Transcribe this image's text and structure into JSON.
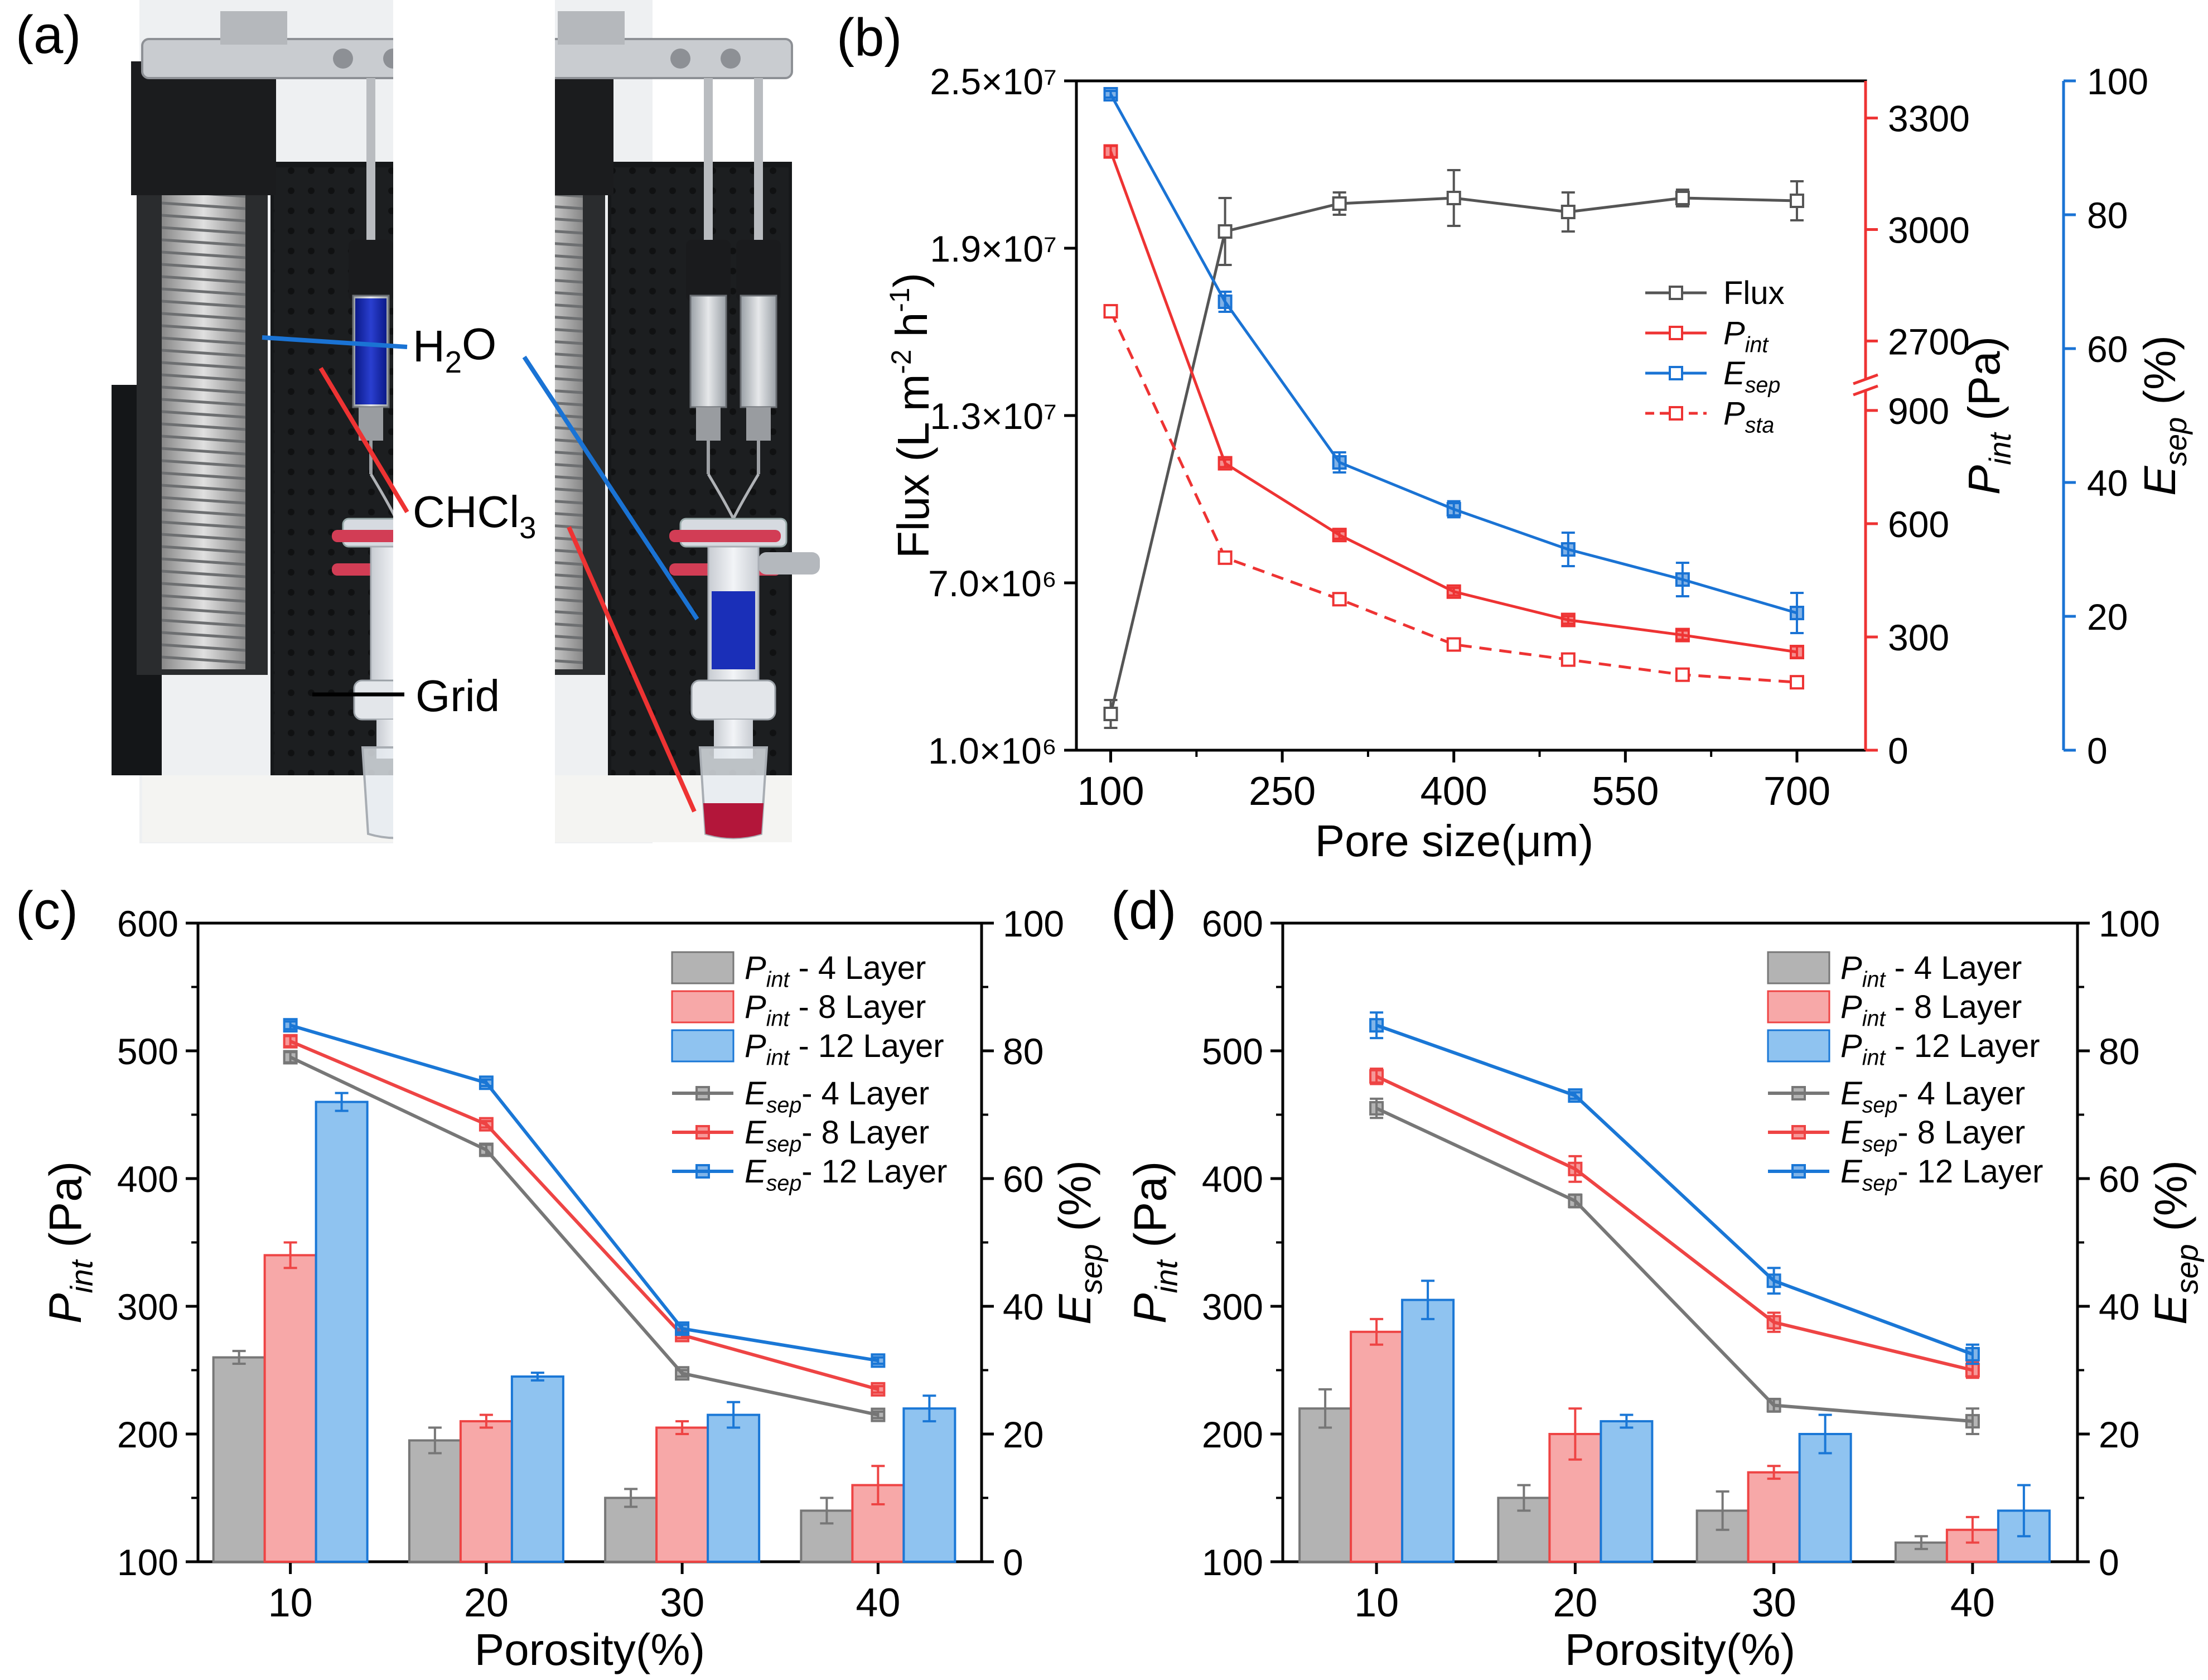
{
  "panels": {
    "a": {
      "label": "(a)",
      "annotations": [
        {
          "base": "H",
          "sub": "2",
          "tail": "O"
        },
        {
          "base": "CHCl",
          "sub": "3",
          "tail": ""
        },
        {
          "base": "Grid",
          "sub": "",
          "tail": ""
        }
      ]
    },
    "b": {
      "label": "(b)"
    },
    "c": {
      "label": "(c)"
    },
    "d": {
      "label": "(d)"
    }
  },
  "colors": {
    "flux": "#555555",
    "pint": "#ee3333",
    "esep": "#1a73d4",
    "l4": "#777777",
    "l8": "#ee4444",
    "l12": "#1a77d6"
  },
  "chart_data": [
    {
      "id": "b",
      "type": "line",
      "xlabel": "Pore size(μm)",
      "xticks": [
        100,
        250,
        400,
        550,
        700
      ],
      "xlim": [
        70,
        760
      ],
      "x": [
        100,
        200,
        300,
        400,
        500,
        600,
        700
      ],
      "axes": {
        "left": {
          "label_base": "Flux (L m",
          "label_sup1": "-2",
          "label_mid": " h",
          "label_sup2": "-1",
          "label_end": ")",
          "ylim": [
            1000000,
            25000000
          ],
          "ticks": [
            "1.0×10⁶",
            "7.0×10⁶",
            "1.3×10⁷",
            "1.9×10⁷",
            "2.5×10⁷"
          ]
        },
        "right1": {
          "label_base": "P",
          "label_sub": "int",
          "label_end": " (Pa)",
          "segments": [
            [
              0,
              950
            ],
            [
              2600,
              3400
            ]
          ],
          "ticks": [
            0,
            300,
            600,
            900,
            2700,
            3000,
            3300
          ]
        },
        "right2": {
          "label_base": "E",
          "label_sub": "sep",
          "label_end": " (%)",
          "ylim": [
            0,
            100
          ],
          "ticks": [
            0,
            20,
            40,
            60,
            80,
            100
          ]
        }
      },
      "series": [
        {
          "name": "Flux",
          "axis": "left",
          "style": "solid",
          "color_key": "flux",
          "values": [
            2300000,
            19600000,
            20600000,
            20800000,
            20300000,
            20800000,
            20700000
          ],
          "errors": [
            500000,
            1200000,
            400000,
            1000000,
            700000,
            300000,
            700000
          ]
        },
        {
          "name": "P",
          "name_sub": "int",
          "axis": "right1",
          "style": "solid",
          "color_key": "pint",
          "values": [
            3210,
            760,
            570,
            420,
            345,
            305,
            260
          ],
          "errors": [
            15,
            10,
            10,
            10,
            10,
            12,
            15
          ]
        },
        {
          "name": "E",
          "name_sub": "sep",
          "axis": "right2",
          "style": "solid",
          "color_key": "esep",
          "values": [
            98,
            67,
            43,
            36,
            30,
            25.5,
            20.5
          ],
          "errors": [
            0.5,
            1.5,
            1.5,
            1.2,
            2.5,
            2.5,
            3
          ]
        },
        {
          "name": "P",
          "name_sub": "sta",
          "axis": "right1",
          "style": "dashed",
          "color_key": "pint",
          "values": [
            2780,
            510,
            400,
            280,
            240,
            200,
            180
          ],
          "errors": [
            15,
            10,
            10,
            8,
            8,
            8,
            10
          ]
        }
      ]
    },
    {
      "id": "c",
      "type": "bar",
      "xlabel": "Porosity(%)",
      "categories": [
        "10",
        "20",
        "30",
        "40"
      ],
      "axes": {
        "left": {
          "label_base": "P",
          "label_sub": "int",
          "label_end": " (Pa)",
          "ylim": [
            100,
            600
          ],
          "ticks": [
            100,
            200,
            300,
            400,
            500,
            600
          ]
        },
        "right": {
          "label_base": "E",
          "label_sub": "sep",
          "label_end": " (%)",
          "ylim": [
            0,
            100
          ],
          "ticks": [
            0,
            20,
            40,
            60,
            80,
            100
          ]
        }
      },
      "bars": [
        {
          "name": "P",
          "name_sub": "int",
          "name_end": " - 4   Layer",
          "color_key": "l4",
          "values": [
            260,
            195,
            150,
            140
          ],
          "errors": [
            5,
            10,
            7,
            10
          ]
        },
        {
          "name": "P",
          "name_sub": "int",
          "name_end": " - 8   Layer",
          "color_key": "l8",
          "values": [
            340,
            210,
            205,
            160
          ],
          "errors": [
            10,
            5,
            5,
            15
          ]
        },
        {
          "name": "P",
          "name_sub": "int",
          "name_end": " - 12 Layer",
          "color_key": "l12",
          "values": [
            460,
            245,
            215,
            220
          ],
          "errors": [
            7,
            3,
            10,
            10
          ]
        }
      ],
      "lines": [
        {
          "name": "E",
          "name_sub": "sep",
          "name_end": "- 4   Layer",
          "color_key": "l4",
          "values": [
            79,
            64.5,
            29.5,
            23
          ],
          "errors": [
            0.8,
            0.8,
            0.5,
            0.5
          ]
        },
        {
          "name": "E",
          "name_sub": "sep",
          "name_end": "- 8   Layer",
          "color_key": "l8",
          "values": [
            81.5,
            68.5,
            35.5,
            27
          ],
          "errors": [
            0.8,
            0.5,
            0.5,
            0.5
          ]
        },
        {
          "name": "E",
          "name_sub": "sep",
          "name_end": "- 12 Layer",
          "color_key": "l12",
          "values": [
            84,
            75,
            36.5,
            31.5
          ],
          "errors": [
            0.6,
            0.5,
            0.6,
            0.5
          ]
        }
      ]
    },
    {
      "id": "d",
      "type": "bar",
      "xlabel": "Porosity(%)",
      "categories": [
        "10",
        "20",
        "30",
        "40"
      ],
      "axes": {
        "left": {
          "label_base": "P",
          "label_sub": "int",
          "label_end": " (Pa)",
          "ylim": [
            100,
            600
          ],
          "ticks": [
            100,
            200,
            300,
            400,
            500,
            600
          ]
        },
        "right": {
          "label_base": "E",
          "label_sub": "sep",
          "label_end": " (%)",
          "ylim": [
            0,
            100
          ],
          "ticks": [
            0,
            20,
            40,
            60,
            80,
            100
          ]
        }
      },
      "bars": [
        {
          "name": "P",
          "name_sub": "int",
          "name_end": " - 4   Layer",
          "color_key": "l4",
          "values": [
            220,
            150,
            140,
            115
          ],
          "errors": [
            15,
            10,
            15,
            5
          ]
        },
        {
          "name": "P",
          "name_sub": "int",
          "name_end": " - 8   Layer",
          "color_key": "l8",
          "values": [
            280,
            200,
            170,
            125
          ],
          "errors": [
            10,
            20,
            5,
            10
          ]
        },
        {
          "name": "P",
          "name_sub": "int",
          "name_end": " - 12 Layer",
          "color_key": "l12",
          "values": [
            305,
            210,
            200,
            140
          ],
          "errors": [
            15,
            5,
            15,
            20
          ]
        }
      ],
      "lines": [
        {
          "name": "E",
          "name_sub": "sep",
          "name_end": "- 4   Layer",
          "color_key": "l4",
          "values": [
            71,
            56.5,
            24.5,
            22
          ],
          "errors": [
            1.5,
            1,
            1,
            2
          ]
        },
        {
          "name": "E",
          "name_sub": "sep",
          "name_end": "- 8   Layer",
          "color_key": "l8",
          "values": [
            76,
            61.5,
            37.5,
            30
          ],
          "errors": [
            1.2,
            2,
            1.5,
            1.2
          ]
        },
        {
          "name": "E",
          "name_sub": "sep",
          "name_end": "- 12 Layer",
          "color_key": "l12",
          "values": [
            84,
            73,
            44,
            32.5
          ],
          "errors": [
            2,
            0.5,
            2,
            1.5
          ]
        }
      ]
    }
  ]
}
